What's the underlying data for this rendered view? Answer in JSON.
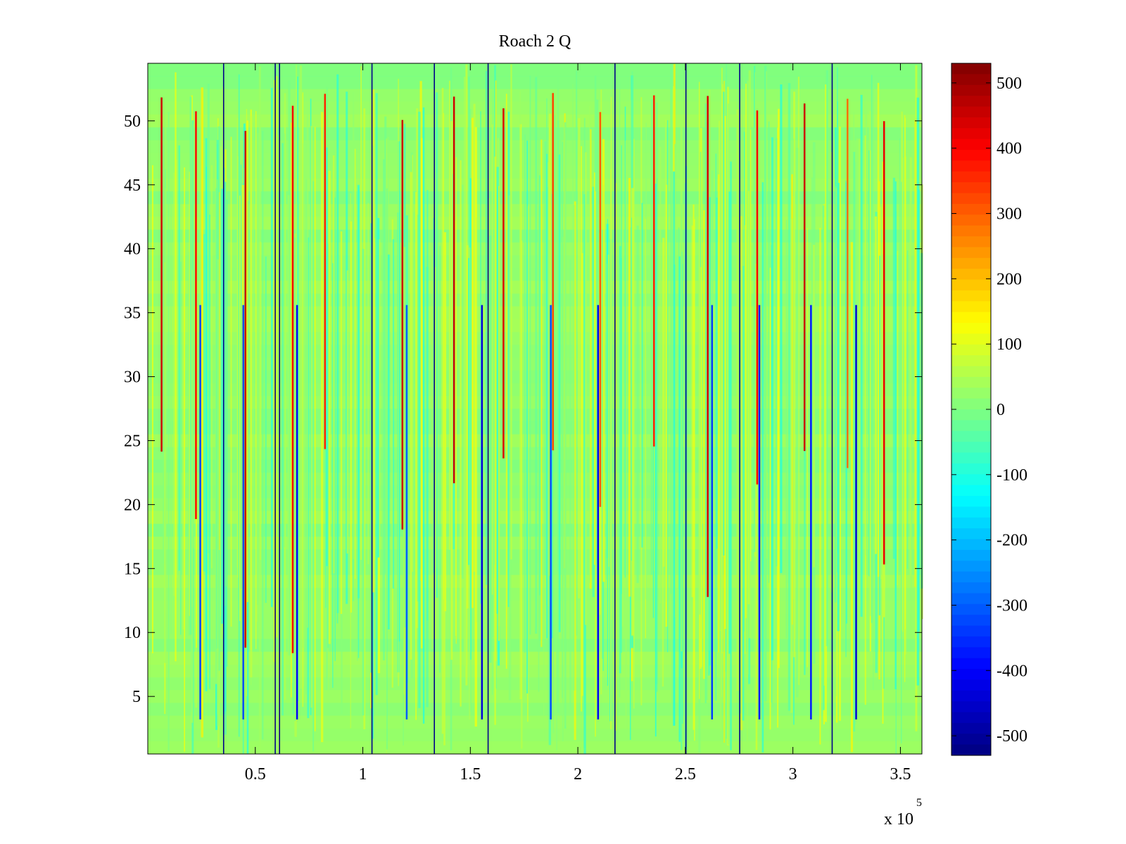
{
  "chart_data": {
    "type": "heatmap",
    "title": "Roach 2 Q",
    "xlabel": "",
    "ylabel": "",
    "x_multiplier": "x 10",
    "x_multiplier_exponent": "5",
    "xlim": [
      0,
      3.6
    ],
    "ylim": [
      0.5,
      54.5
    ],
    "x_ticks": [
      0.5,
      1,
      1.5,
      2,
      2.5,
      3,
      3.5
    ],
    "x_tick_labels": [
      "0.5",
      "1",
      "1.5",
      "2",
      "2.5",
      "3",
      "3.5"
    ],
    "y_ticks": [
      5,
      10,
      15,
      20,
      25,
      30,
      35,
      40,
      45,
      50
    ],
    "y_tick_labels": [
      "5",
      "10",
      "15",
      "20",
      "25",
      "30",
      "35",
      "40",
      "45",
      "50"
    ],
    "rows": 54,
    "colormap": "jet",
    "clim": [
      -530,
      530
    ],
    "colorbar": {
      "ticks": [
        500,
        400,
        300,
        200,
        100,
        0,
        -100,
        -200,
        -300,
        -400,
        -500
      ],
      "tick_labels": [
        "500",
        "400",
        "300",
        "200",
        "100",
        "0",
        "-100",
        "-200",
        "-300",
        "-400",
        "-500"
      ]
    },
    "background_level": 20,
    "dark_blue_stripe_x": [
      0.35,
      0.59,
      0.61,
      1.04,
      1.33,
      1.58,
      2.17,
      2.5,
      2.75,
      3.18
    ],
    "red_stripe_x": [
      0.06,
      0.22,
      0.45,
      0.67,
      0.82,
      1.18,
      1.42,
      1.65,
      1.88,
      2.1,
      2.35,
      2.6,
      2.83,
      3.05,
      3.25,
      3.42
    ],
    "blue_stripe_x": [
      0.24,
      0.44,
      0.69,
      1.2,
      1.55,
      1.87,
      2.09,
      2.62,
      2.84,
      3.08,
      3.29
    ],
    "grid": false
  }
}
